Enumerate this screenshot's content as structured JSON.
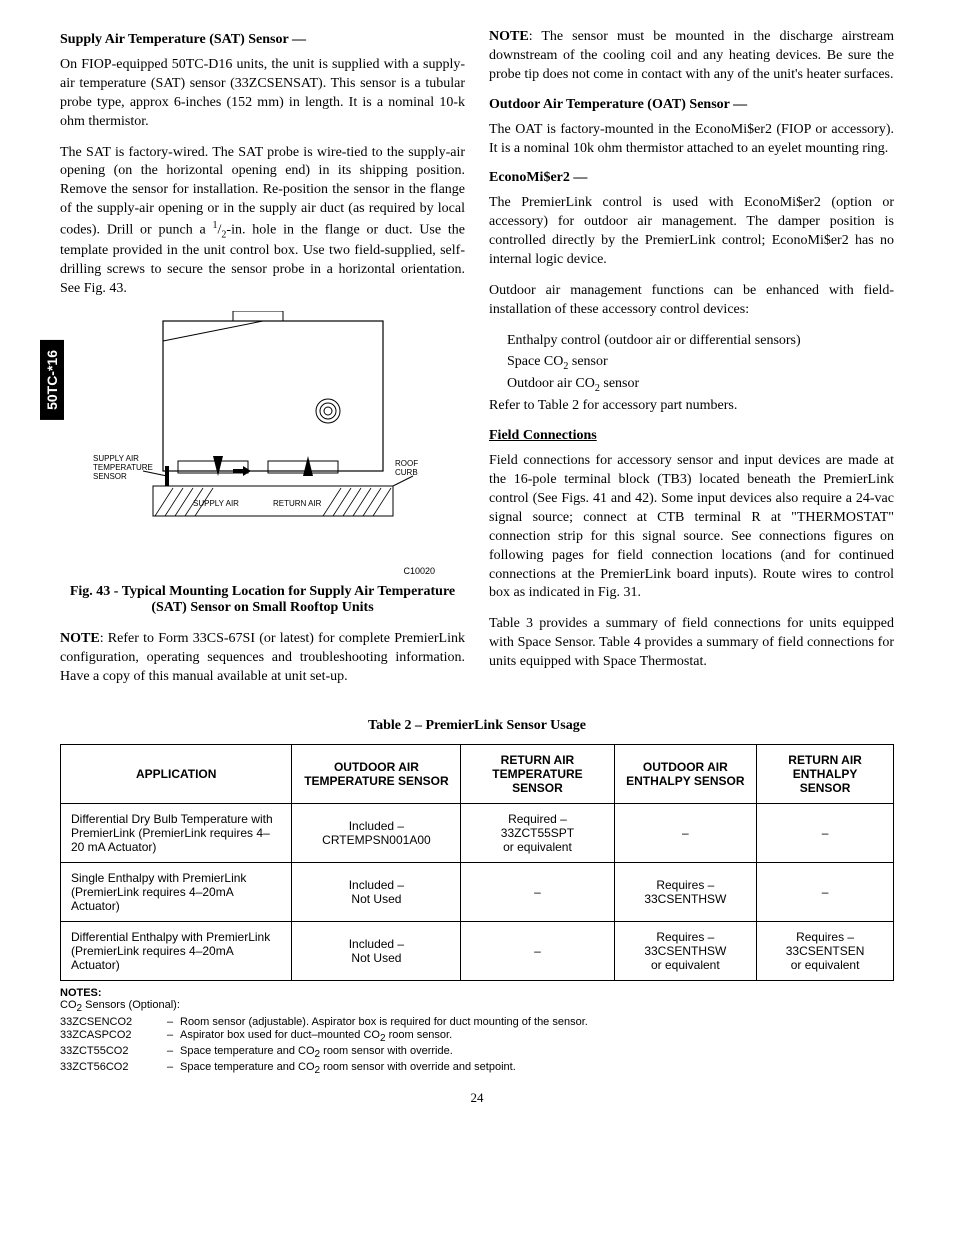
{
  "sideTab": "50TC-*16",
  "left": {
    "h1": "Supply Air Temperature (SAT) Sensor —",
    "p1": "On FIOP-equipped 50TC-D16 units, the unit is supplied with a supply-air temperature (SAT) sensor (33ZCSENSAT). This sensor is a tubular probe type, approx 6-inches (152 mm) in length. It is a nominal 10-k ohm thermistor.",
    "p2a": "The SAT is factory-wired. The SAT probe is wire-tied to the supply-air opening (on the horizontal opening end) in its shipping position. Remove the sensor for installation. Re-position the sensor in the flange of the supply-air opening or in the supply air duct (as required by local codes). Drill or punch a ",
    "p2frac1": "1",
    "p2frac2": "2",
    "p2b": "-in. hole in the flange or duct. Use the template provided in the unit control box. Use two field-supplied, self-drilling screws to secure the sensor probe in a horizontal orientation. See Fig. 43.",
    "figLabels": {
      "sat": "SUPPLY AIR\nTEMPERATURE\nSENSOR",
      "supply": "SUPPLY AIR",
      "return": "RETURN AIR",
      "roof": "ROOF\nCURB"
    },
    "figId": "C10020",
    "figCaption": "Fig. 43 - Typical Mounting Location for Supply Air Temperature (SAT) Sensor on Small Rooftop Units",
    "noteLabel": "NOTE",
    "p3": ": Refer to Form 33CS-67SI (or latest) for complete PremierLink configuration, operating sequences and troubleshooting information. Have a copy of this manual available at unit set-up."
  },
  "right": {
    "noteLabel": "NOTE",
    "p1": ": The sensor must be mounted in the discharge airstream downstream of the cooling coil and any heating devices. Be sure the probe tip does not come in contact with any of the unit's heater surfaces.",
    "h2": "Outdoor Air Temperature (OAT) Sensor —",
    "p2": "The OAT is factory-mounted in the EconoMi$er2 (FIOP or accessory). It is a nominal 10k ohm thermistor attached to an eyelet mounting ring.",
    "h3": "EconoMi$er2 —",
    "p3": "The PremierLink control is used with EconoMi$er2 (option or accessory) for outdoor air management. The damper position is controlled directly by the PremierLink control; EconoMi$er2 has no internal logic device.",
    "p4": "Outdoor air management functions can be enhanced with field-installation of these accessory control devices:",
    "li1": "Enthalpy control (outdoor air or differential sensors)",
    "li2a": "Space CO",
    "li2b": " sensor",
    "li3a": "Outdoor air CO",
    "li3b": " sensor",
    "p5": "Refer to Table 2 for accessory part numbers.",
    "h4": "Field Connections",
    "p6": "Field connections for accessory sensor and input devices are made at the 16-pole terminal block (TB3) located beneath the PremierLink control (See Figs. 41 and 42). Some input devices also require a 24-vac signal source; connect at CTB terminal R at \"THERMOSTAT\" connection strip for this signal source. See connections figures on following pages for field connection locations (and for continued connections at the PremierLink board inputs). Route wires to control box as indicated in Fig. 31.",
    "p7": "Table 3 provides a summary of field connections for units equipped with Space Sensor. Table 4 provides a summary of field connections for units equipped with Space Thermostat."
  },
  "table": {
    "title": "Table 2 – PremierLink Sensor Usage",
    "headers": [
      "APPLICATION",
      "OUTDOOR AIR TEMPERATURE SENSOR",
      "RETURN AIR TEMPERATURE SENSOR",
      "OUTDOOR AIR ENTHALPY SENSOR",
      "RETURN AIR ENTHALPY SENSOR"
    ],
    "rows": [
      [
        "Differential Dry Bulb Temperature with PremierLink (PremierLink requires 4–20 mA Actuator)",
        "Included – CRTEMPSN001A00",
        "Required – 33ZCT55SPT or equivalent",
        "–",
        "–"
      ],
      [
        "Single Enthalpy with PremierLink (PremierLink requires 4–20mA Actuator)",
        "Included – Not Used",
        "–",
        "Requires – 33CSENTHSW",
        "–"
      ],
      [
        "Differential Enthalpy with PremierLink (PremierLink requires 4–20mA Actuator)",
        "Included – Not Used",
        "–",
        "Requires – 33CSENTHSW or equivalent",
        "Requires – 33CSENTSEN or equivalent"
      ]
    ]
  },
  "notes": {
    "title": "NOTES:",
    "sub": " Sensors (Optional):",
    "subPrefix": "CO",
    "items": [
      {
        "code": "33ZCSENCO2",
        "text": "Room sensor (adjustable). Aspirator box is required for duct mounting of the sensor."
      },
      {
        "code": "33ZCASPCO2",
        "text": "Aspirator box used for duct–mounted CO₂ room sensor."
      },
      {
        "code": "33ZCT55CO2",
        "text": "Space temperature and CO₂ room sensor with override."
      },
      {
        "code": "33ZCT56CO2",
        "text": "Space temperature and CO₂ room sensor with override and setpoint."
      }
    ]
  },
  "pageNumber": "24"
}
